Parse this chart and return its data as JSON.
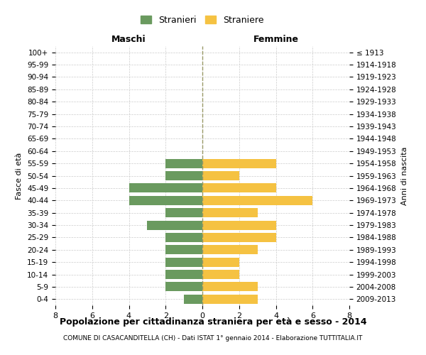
{
  "age_groups": [
    "100+",
    "95-99",
    "90-94",
    "85-89",
    "80-84",
    "75-79",
    "70-74",
    "65-69",
    "60-64",
    "55-59",
    "50-54",
    "45-49",
    "40-44",
    "35-39",
    "30-34",
    "25-29",
    "20-24",
    "15-19",
    "10-14",
    "5-9",
    "0-4"
  ],
  "birth_years": [
    "≤ 1913",
    "1914-1918",
    "1919-1923",
    "1924-1928",
    "1929-1933",
    "1934-1938",
    "1939-1943",
    "1944-1948",
    "1949-1953",
    "1954-1958",
    "1959-1963",
    "1964-1968",
    "1969-1973",
    "1974-1978",
    "1979-1983",
    "1984-1988",
    "1989-1993",
    "1994-1998",
    "1999-2003",
    "2004-2008",
    "2009-2013"
  ],
  "males": [
    0,
    0,
    0,
    0,
    0,
    0,
    0,
    0,
    0,
    2,
    2,
    4,
    4,
    2,
    3,
    2,
    2,
    2,
    2,
    2,
    1
  ],
  "females": [
    0,
    0,
    0,
    0,
    0,
    0,
    0,
    0,
    0,
    4,
    2,
    4,
    6,
    3,
    4,
    4,
    3,
    2,
    2,
    3,
    3
  ],
  "male_color": "#6a9a5f",
  "female_color": "#f5c242",
  "title_main": "Popolazione per cittadinanza straniera per età e sesso - 2014",
  "title_sub": "COMUNE DI CASACANDITELLA (CH) - Dati ISTAT 1° gennaio 2014 - Elaborazione TUTTITALIA.IT",
  "legend_male": "Stranieri",
  "legend_female": "Straniere",
  "header_left": "Maschi",
  "header_right": "Femmine",
  "ylabel": "Fasce di età",
  "ylabel_right": "Anni di nascita",
  "xlim": 8,
  "background_color": "#ffffff",
  "grid_color": "#cccccc",
  "center_line_color": "#999966"
}
